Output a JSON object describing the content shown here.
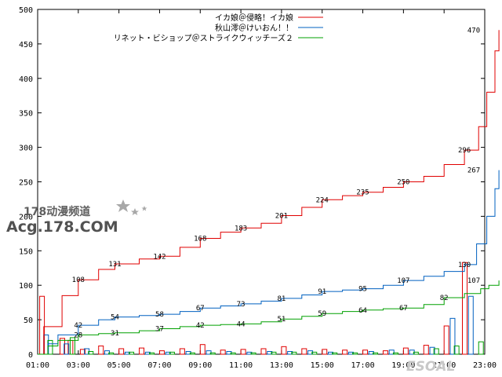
{
  "chart_data": {
    "type": "line",
    "xlim": [
      0,
      22
    ],
    "ylim": [
      0,
      500
    ],
    "x_ticks": [
      "01:00",
      "03:00",
      "05:00",
      "07:00",
      "09:00",
      "11:00",
      "13:00",
      "15:00",
      "17:00",
      "19:00",
      "21:00",
      "23:00"
    ],
    "x_tick_positions": [
      0,
      2,
      4,
      6,
      8,
      10,
      12,
      14,
      16,
      18,
      20,
      22
    ],
    "y_ticks": [
      0,
      50,
      100,
      150,
      200,
      250,
      300,
      350,
      400,
      450,
      500
    ],
    "grid": false,
    "legend_position": "top-right",
    "series": [
      {
        "name": "イカ娘＠侵略！イカ娘",
        "color": "#e00000",
        "points": [
          [
            0,
            0
          ],
          [
            0.3,
            40
          ],
          [
            1.2,
            85
          ],
          [
            2,
            108
          ],
          [
            3,
            123
          ],
          [
            3.8,
            131
          ],
          [
            5,
            138
          ],
          [
            6,
            142
          ],
          [
            7,
            155
          ],
          [
            8,
            168
          ],
          [
            9,
            177
          ],
          [
            10,
            183
          ],
          [
            11,
            190
          ],
          [
            12,
            201
          ],
          [
            13,
            213
          ],
          [
            14,
            224
          ],
          [
            15,
            230
          ],
          [
            16,
            235
          ],
          [
            17,
            242
          ],
          [
            18,
            250
          ],
          [
            19,
            258
          ],
          [
            20,
            275
          ],
          [
            21,
            296
          ],
          [
            21.7,
            330
          ],
          [
            22.1,
            380
          ],
          [
            22.5,
            440
          ],
          [
            22.7,
            470
          ]
        ],
        "labels": [
          {
            "x": 2,
            "y": 108,
            "text": "108"
          },
          {
            "x": 3.8,
            "y": 131,
            "text": "131"
          },
          {
            "x": 6,
            "y": 142,
            "text": "142"
          },
          {
            "x": 8,
            "y": 168,
            "text": "168"
          },
          {
            "x": 10,
            "y": 183,
            "text": "183"
          },
          {
            "x": 12,
            "y": 201,
            "text": "201"
          },
          {
            "x": 14,
            "y": 224,
            "text": "224"
          },
          {
            "x": 16,
            "y": 235,
            "text": "235"
          },
          {
            "x": 18,
            "y": 250,
            "text": "250"
          },
          {
            "x": 21,
            "y": 296,
            "text": "296"
          },
          {
            "x": 22.7,
            "y": 470,
            "text": "470"
          }
        ],
        "bars": [
          [
            0.1,
            84
          ],
          [
            1.1,
            23
          ],
          [
            1.5,
            20
          ],
          [
            2.1,
            7
          ],
          [
            3,
            12
          ],
          [
            4,
            8
          ],
          [
            5,
            9
          ],
          [
            6,
            5
          ],
          [
            7,
            8
          ],
          [
            8,
            14
          ],
          [
            9,
            6
          ],
          [
            10,
            7
          ],
          [
            11,
            8
          ],
          [
            12,
            11
          ],
          [
            13,
            8
          ],
          [
            14,
            7
          ],
          [
            15,
            6
          ],
          [
            16,
            6
          ],
          [
            17,
            5
          ],
          [
            18,
            9
          ],
          [
            19,
            13
          ],
          [
            20,
            41
          ],
          [
            20.9,
            133
          ]
        ]
      },
      {
        "name": "秋山澪＠けいおん！！",
        "color": "#0060c0",
        "points": [
          [
            0,
            0
          ],
          [
            0.5,
            15
          ],
          [
            1,
            28
          ],
          [
            2,
            42
          ],
          [
            3,
            50
          ],
          [
            3.8,
            54
          ],
          [
            5,
            56
          ],
          [
            6,
            58
          ],
          [
            7,
            62
          ],
          [
            8,
            67
          ],
          [
            9,
            70
          ],
          [
            10,
            73
          ],
          [
            11,
            77
          ],
          [
            12,
            81
          ],
          [
            13,
            86
          ],
          [
            14,
            91
          ],
          [
            15,
            93
          ],
          [
            16,
            95
          ],
          [
            17,
            100
          ],
          [
            18,
            107
          ],
          [
            19,
            113
          ],
          [
            20,
            120
          ],
          [
            21,
            130
          ],
          [
            21.6,
            160
          ],
          [
            22.1,
            200
          ],
          [
            22.5,
            240
          ],
          [
            22.7,
            267
          ]
        ],
        "labels": [
          {
            "x": 2,
            "y": 42,
            "text": "42"
          },
          {
            "x": 3.8,
            "y": 54,
            "text": "54"
          },
          {
            "x": 6,
            "y": 58,
            "text": "58"
          },
          {
            "x": 8,
            "y": 67,
            "text": "67"
          },
          {
            "x": 10,
            "y": 73,
            "text": "73"
          },
          {
            "x": 12,
            "y": 81,
            "text": "81"
          },
          {
            "x": 14,
            "y": 91,
            "text": "91"
          },
          {
            "x": 16,
            "y": 95,
            "text": "95"
          },
          {
            "x": 18,
            "y": 107,
            "text": "107"
          },
          {
            "x": 21,
            "y": 130,
            "text": "130"
          },
          {
            "x": 22.7,
            "y": 267,
            "text": "267"
          }
        ],
        "bars": [
          [
            0.3,
            28
          ],
          [
            1.3,
            15
          ],
          [
            2.3,
            8
          ],
          [
            3.3,
            5
          ],
          [
            4.3,
            3
          ],
          [
            5.3,
            3
          ],
          [
            6.3,
            3
          ],
          [
            7.3,
            4
          ],
          [
            8.3,
            5
          ],
          [
            9.3,
            4
          ],
          [
            10.3,
            3
          ],
          [
            11.3,
            4
          ],
          [
            12.3,
            4
          ],
          [
            13.3,
            5
          ],
          [
            14.3,
            3
          ],
          [
            15.3,
            3
          ],
          [
            16.3,
            4
          ],
          [
            17.3,
            6
          ],
          [
            18.3,
            6
          ],
          [
            19.3,
            10
          ],
          [
            20.3,
            52
          ],
          [
            21.2,
            84
          ]
        ]
      },
      {
        "name": "リネット・ビショップ＠ストライクウィッチーズ２",
        "color": "#00a000",
        "points": [
          [
            0,
            0
          ],
          [
            0.5,
            12
          ],
          [
            1,
            20
          ],
          [
            2,
            28
          ],
          [
            3,
            30
          ],
          [
            3.8,
            31
          ],
          [
            5,
            34
          ],
          [
            6,
            37
          ],
          [
            7,
            40
          ],
          [
            8,
            42
          ],
          [
            9,
            43
          ],
          [
            10,
            44
          ],
          [
            11,
            47
          ],
          [
            12,
            51
          ],
          [
            13,
            55
          ],
          [
            14,
            59
          ],
          [
            15,
            62
          ],
          [
            16,
            64
          ],
          [
            17,
            66
          ],
          [
            18,
            67
          ],
          [
            19,
            72
          ],
          [
            20,
            82
          ],
          [
            21,
            88
          ],
          [
            21.8,
            95
          ],
          [
            22.2,
            100
          ],
          [
            22.7,
            107
          ]
        ],
        "labels": [
          {
            "x": 2,
            "y": 28,
            "text": "28"
          },
          {
            "x": 3.8,
            "y": 31,
            "text": "31"
          },
          {
            "x": 6,
            "y": 37,
            "text": "37"
          },
          {
            "x": 8,
            "y": 42,
            "text": "42"
          },
          {
            "x": 10,
            "y": 44,
            "text": "44"
          },
          {
            "x": 12,
            "y": 51,
            "text": "51"
          },
          {
            "x": 14,
            "y": 59,
            "text": "59"
          },
          {
            "x": 16,
            "y": 64,
            "text": "64"
          },
          {
            "x": 18,
            "y": 67,
            "text": "67"
          },
          {
            "x": 20,
            "y": 82,
            "text": "82"
          },
          {
            "x": 22.7,
            "y": 107,
            "text": "107"
          }
        ],
        "bars": [
          [
            0.5,
            20
          ],
          [
            1.6,
            24
          ],
          [
            2.5,
            4
          ],
          [
            3.5,
            2
          ],
          [
            4.5,
            3
          ],
          [
            5.5,
            2
          ],
          [
            6.5,
            3
          ],
          [
            7.5,
            2
          ],
          [
            8.5,
            2
          ],
          [
            9.5,
            2
          ],
          [
            10.5,
            2
          ],
          [
            11.5,
            3
          ],
          [
            12.5,
            3
          ],
          [
            13.5,
            3
          ],
          [
            14.5,
            2
          ],
          [
            15.5,
            2
          ],
          [
            16.5,
            2
          ],
          [
            17.5,
            2
          ],
          [
            18.5,
            3
          ],
          [
            19.5,
            8
          ],
          [
            20.5,
            12
          ],
          [
            21.7,
            18
          ]
        ]
      }
    ]
  },
  "watermark": {
    "line1": "178动漫频道",
    "line2": "Acg.178.COM",
    "corner": "ESOAL"
  }
}
